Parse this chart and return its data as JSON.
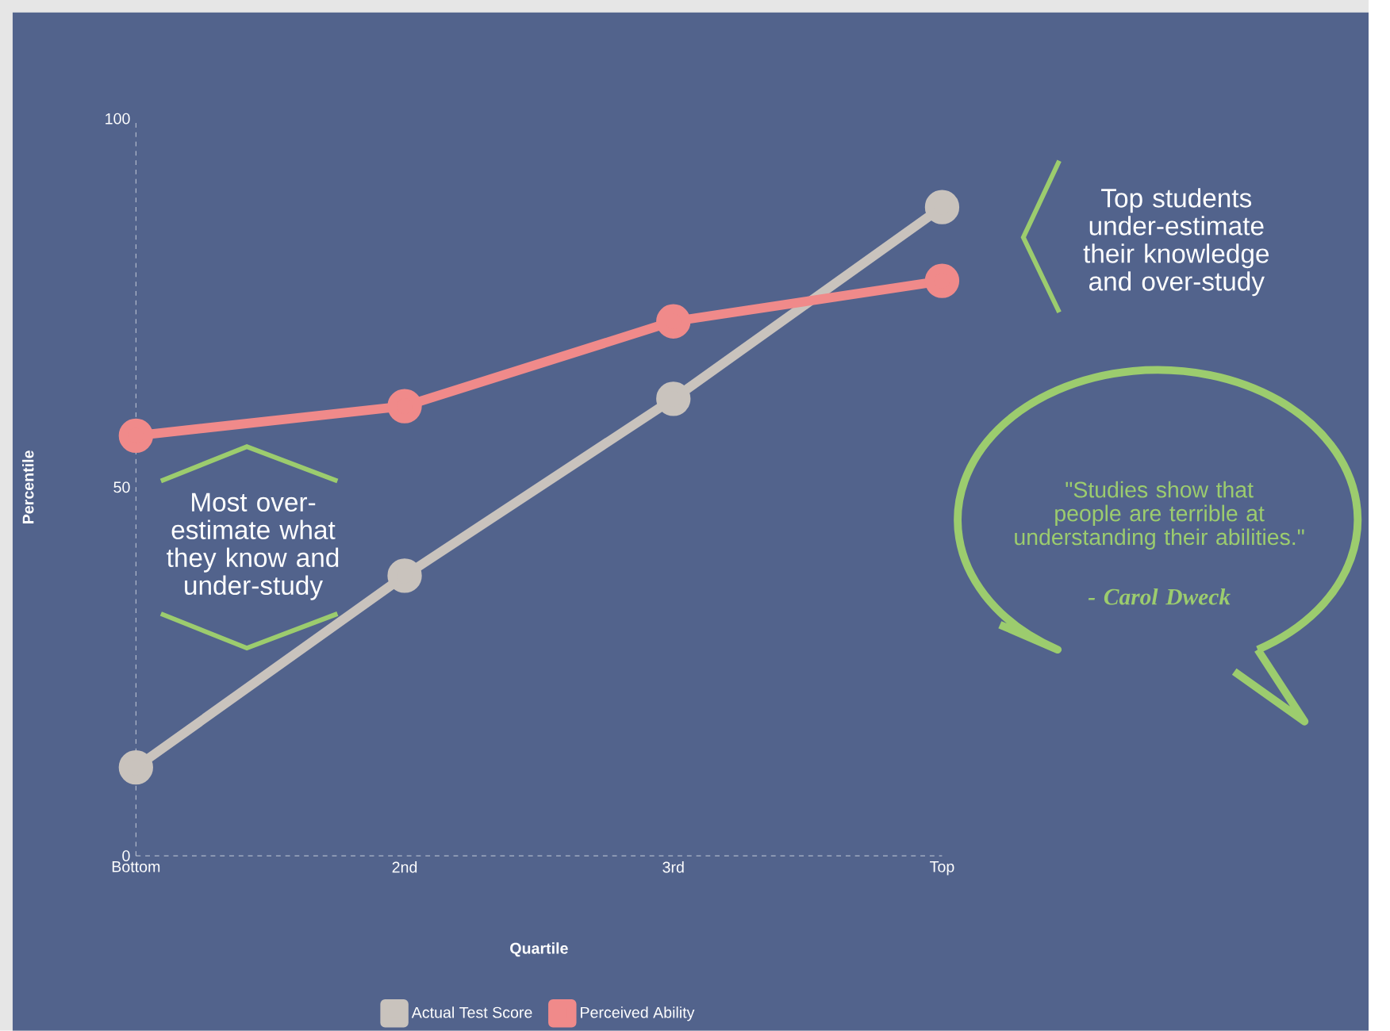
{
  "chart_data": {
    "type": "line",
    "xlabel": "Quartile",
    "ylabel": "Percentile",
    "categories": [
      "Bottom",
      "2nd",
      "3rd",
      "Top"
    ],
    "series": [
      {
        "name": "Actual Test Score",
        "color": "#c9c3bd",
        "values": [
          12,
          38,
          62,
          88
        ]
      },
      {
        "name": "Perceived Ability",
        "color": "#f08a8a",
        "values": [
          57,
          61,
          72.5,
          78
        ]
      }
    ],
    "ylim": [
      0,
      100
    ],
    "yticks": [
      0,
      50,
      100
    ],
    "marker": "circle",
    "line_style": "solid",
    "legend": "bottom",
    "annotations": [
      "Top students under-estimate their knowledge and over-study",
      "Most over-estimate what they know and under-study",
      "\"Studies show that people are terrible at understanding their abilities.\"",
      "- Carol Dweck"
    ]
  }
}
